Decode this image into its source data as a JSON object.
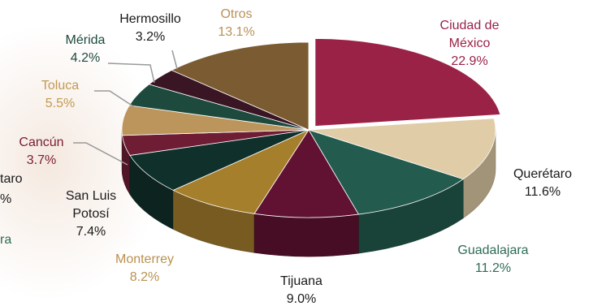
{
  "chart_data": {
    "type": "pie",
    "title": "",
    "slices": [
      {
        "name": "Ciudad de México",
        "label_lines": [
          "Ciudad de",
          "México"
        ],
        "value": 22.9,
        "pct_label": "22.9%",
        "color": "#9b2247",
        "label_color": "#9b2247"
      },
      {
        "name": "Querétaro",
        "label_lines": [
          "Querétaro"
        ],
        "value": 11.6,
        "pct_label": "11.6%",
        "color": "#e0cda7",
        "label_color": "#1a1a1a"
      },
      {
        "name": "Guadalajara",
        "label_lines": [
          "Guadalajara"
        ],
        "value": 11.2,
        "pct_label": "11.2%",
        "color": "#235b4e",
        "label_color": "#2f6b57"
      },
      {
        "name": "Tijuana",
        "label_lines": [
          "Tijuana"
        ],
        "value": 9.0,
        "pct_label": "9.0%",
        "color": "#611232",
        "label_color": "#1a1a1a"
      },
      {
        "name": "Monterrey",
        "label_lines": [
          "Monterrey"
        ],
        "value": 8.2,
        "pct_label": "8.2%",
        "color": "#a57f2c",
        "label_color": "#b9914f"
      },
      {
        "name": "San Luis Potosí",
        "label_lines": [
          "San Luis",
          "Potosí"
        ],
        "value": 7.4,
        "pct_label": "7.4%",
        "color": "#10312b",
        "label_color": "#1a1a1a"
      },
      {
        "name": "Cancún",
        "label_lines": [
          "Cancún"
        ],
        "value": 3.7,
        "pct_label": "3.7%",
        "color": "#6f1d35",
        "label_color": "#7a1d33"
      },
      {
        "name": "Toluca",
        "label_lines": [
          "Toluca"
        ],
        "value": 5.5,
        "pct_label": "5.5%",
        "color": "#bc955c",
        "label_color": "#c29a52"
      },
      {
        "name": "Mérida",
        "label_lines": [
          "Mérida"
        ],
        "value": 4.2,
        "pct_label": "4.2%",
        "color": "#1e4a3e",
        "label_color": "#1e4a3e"
      },
      {
        "name": "Hermosillo",
        "label_lines": [
          "Hermosillo"
        ],
        "value": 3.2,
        "pct_label": "3.2%",
        "color": "#3a1524",
        "label_color": "#1a1a1a"
      },
      {
        "name": "Otros",
        "label_lines": [
          "Otros"
        ],
        "value": 13.1,
        "pct_label": "13.1%",
        "color": "#7b5b32",
        "label_color": "#b8915a"
      }
    ],
    "cropped_labels": [
      {
        "text": "taro",
        "color": "#1a1a1a"
      },
      {
        "text": "%",
        "color": "#1a1a1a"
      },
      {
        "text": "ra",
        "color": "#2f6b57"
      }
    ],
    "legend": "none",
    "style": "3d-exploded-outline"
  }
}
